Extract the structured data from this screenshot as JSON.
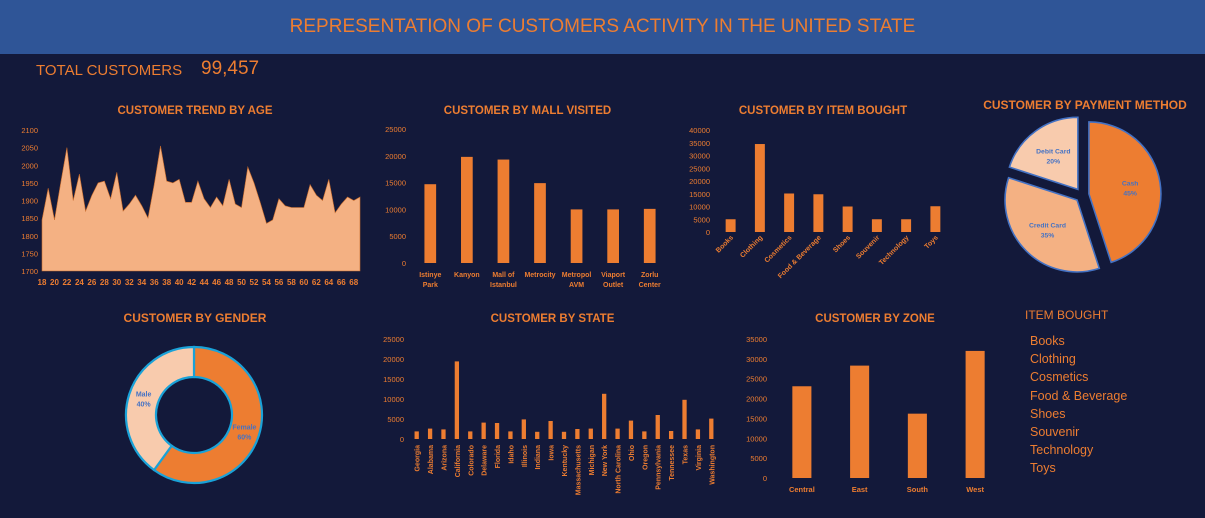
{
  "header": {
    "title": "REPRESENTATION OF CUSTOMERS ACTIVITY IN THE UNITED STATE"
  },
  "summary": {
    "total_label": "TOTAL CUSTOMERS",
    "total_value": "99,457"
  },
  "legend_panel": {
    "title": "ITEM BOUGHT",
    "items": [
      "Books",
      "Clothing",
      "Cosmetics",
      "Food & Beverage",
      "Shoes",
      "Souvenir",
      "Technology",
      "Toys"
    ]
  },
  "colors": {
    "background": "#13193a",
    "banner": "#2f5597",
    "accent": "#ed7d31",
    "area_fill": "#f4b183",
    "light": "#f8cbad",
    "outline": "#4472c4"
  },
  "chart_data": [
    {
      "id": "age",
      "type": "area",
      "title": "CUSTOMER TREND BY AGE",
      "x": [
        18,
        19,
        20,
        21,
        22,
        23,
        24,
        25,
        26,
        27,
        28,
        29,
        30,
        31,
        32,
        33,
        34,
        35,
        36,
        37,
        38,
        39,
        40,
        41,
        42,
        43,
        44,
        45,
        46,
        47,
        48,
        49,
        50,
        51,
        52,
        53,
        54,
        55,
        56,
        57,
        58,
        59,
        60,
        61,
        62,
        63,
        64,
        65,
        66,
        67,
        68,
        69
      ],
      "values": [
        1845,
        1935,
        1845,
        1950,
        2050,
        1900,
        1975,
        1870,
        1915,
        1950,
        1955,
        1905,
        1980,
        1870,
        1890,
        1915,
        1885,
        1850,
        1945,
        2055,
        1955,
        1950,
        1960,
        1895,
        1895,
        1955,
        1905,
        1880,
        1910,
        1885,
        1960,
        1890,
        1880,
        1995,
        1950,
        1895,
        1835,
        1845,
        1905,
        1885,
        1880,
        1880,
        1880,
        1945,
        1915,
        1900,
        1960,
        1865,
        1890,
        1910,
        1900,
        1910
      ],
      "x_ticks": [
        "18",
        "20",
        "22",
        "24",
        "26",
        "28",
        "30",
        "32",
        "34",
        "36",
        "38",
        "40",
        "42",
        "44",
        "46",
        "48",
        "50",
        "52",
        "54",
        "56",
        "58",
        "60",
        "62",
        "64",
        "66",
        "68"
      ],
      "y_ticks": [
        "1700",
        "1750",
        "1800",
        "1850",
        "1900",
        "1950",
        "2000",
        "2050",
        "2100"
      ],
      "ylim": [
        1700,
        2100
      ]
    },
    {
      "id": "mall",
      "type": "bar",
      "title": "CUSTOMER BY MALL VISITED",
      "categories": [
        [
          "Istinye",
          "Park"
        ],
        [
          "Kanyon"
        ],
        [
          "Mall of",
          "Istanbul"
        ],
        [
          "Metrocity"
        ],
        [
          "Metropol",
          "AVM"
        ],
        [
          "Viaport",
          "Outlet"
        ],
        [
          "Zorlu",
          "Center"
        ]
      ],
      "values": [
        14700,
        19800,
        19300,
        14900,
        10000,
        10000,
        10100
      ],
      "y_ticks": [
        "0",
        "5000",
        "10000",
        "15000",
        "20000",
        "25000"
      ],
      "ylim": [
        0,
        25000
      ]
    },
    {
      "id": "item",
      "type": "bar",
      "title": "CUSTOMER BY ITEM BOUGHT",
      "categories": [
        "Books",
        "Clothing",
        "Cosmetics",
        "Food & Beverage",
        "Shoes",
        "Souvenir",
        "Technology",
        "Toys"
      ],
      "values": [
        5000,
        34500,
        15100,
        14800,
        10000,
        5000,
        5000,
        10100
      ],
      "y_ticks": [
        "0",
        "5000",
        "10000",
        "15000",
        "20000",
        "25000",
        "30000",
        "35000",
        "40000"
      ],
      "ylim": [
        0,
        40000
      ]
    },
    {
      "id": "payment",
      "type": "pie",
      "title": "CUSTOMER BY PAYMENT METHOD",
      "labels": [
        "Cash",
        "Credit Card",
        "Debit Card"
      ],
      "values": [
        45,
        35,
        20
      ],
      "value_labels": [
        "45%",
        "35%",
        "20%"
      ]
    },
    {
      "id": "gender",
      "type": "pie",
      "title": "CUSTOMER BY GENDER",
      "labels": [
        "Female",
        "Male"
      ],
      "values": [
        60,
        40
      ],
      "value_labels": [
        "60%",
        "40%"
      ]
    },
    {
      "id": "state",
      "type": "bar",
      "title": "CUSTOMER BY STATE",
      "categories": [
        "Georgia",
        "Alabama",
        "Arizona",
        "California",
        "Colorado",
        "Delaware",
        "Florida",
        "Idaho",
        "Illinois",
        "Indiana",
        "Iowa",
        "Kentucky",
        "Massachusetts",
        "Michigan",
        "New York",
        "North Carolina",
        "Ohio",
        "Oregon",
        "Pennsylvania",
        "Tennessee",
        "Texas",
        "Virginia",
        "Washington"
      ],
      "values": [
        1900,
        2600,
        2400,
        19400,
        1900,
        4100,
        4000,
        1900,
        4900,
        1800,
        4500,
        1800,
        2500,
        2600,
        11300,
        2600,
        4600,
        1900,
        6000,
        2000,
        9800,
        2400,
        5100
      ],
      "y_ticks": [
        "0",
        "5000",
        "10000",
        "15000",
        "20000",
        "25000"
      ],
      "ylim": [
        0,
        25000
      ]
    },
    {
      "id": "zone",
      "type": "bar",
      "title": "CUSTOMER BY ZONE",
      "categories": [
        "Central",
        "East",
        "South",
        "West"
      ],
      "values": [
        23100,
        28300,
        16200,
        32000
      ],
      "y_ticks": [
        "0",
        "5000",
        "10000",
        "15000",
        "20000",
        "25000",
        "30000",
        "35000"
      ],
      "ylim": [
        0,
        35000
      ]
    }
  ]
}
